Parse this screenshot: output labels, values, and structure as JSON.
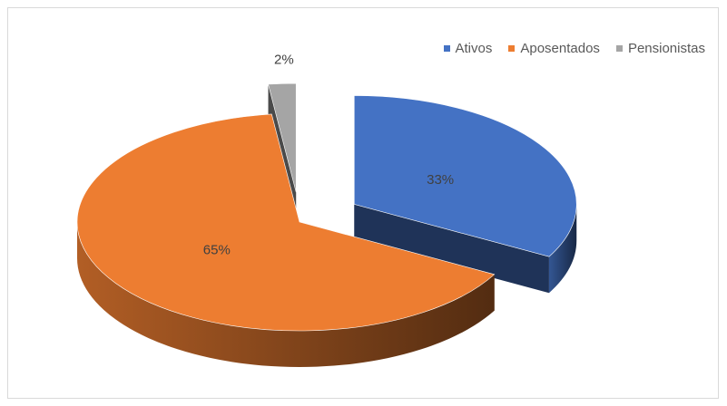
{
  "chart_data": {
    "type": "pie",
    "categories": [
      "Ativos",
      "Aposentados",
      "Pensionistas"
    ],
    "values": [
      33,
      65,
      2
    ],
    "value_labels": [
      "33%",
      "65%",
      "2%"
    ],
    "colors": [
      "#4472c4",
      "#ed7d31",
      "#a5a5a5"
    ],
    "legend_position": "top-right",
    "style": "3d-exploded"
  }
}
